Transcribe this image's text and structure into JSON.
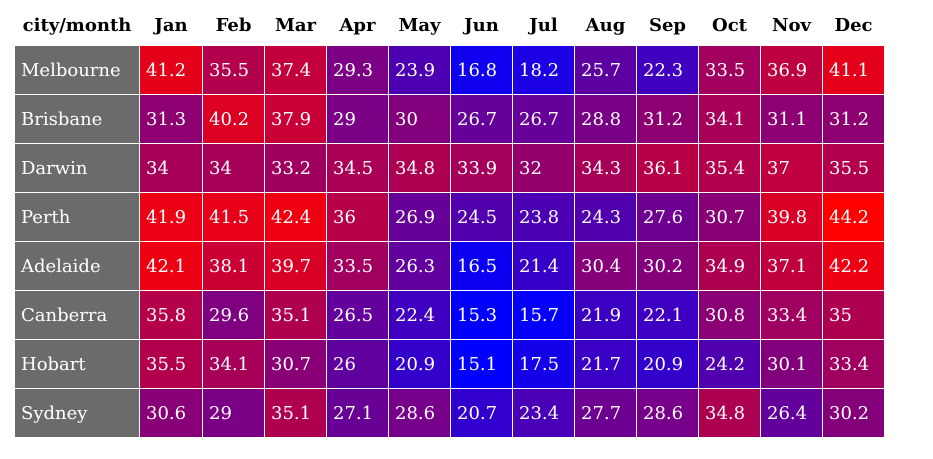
{
  "header_label": "city/month",
  "colors": {
    "low": "#0000ff",
    "high": "#ff0000",
    "row_label_bg": "#6b6b6b",
    "cell_text": "#ffffff"
  },
  "chart_data": {
    "type": "heatmap",
    "title": "",
    "xlabel": "",
    "ylabel": "",
    "x": [
      "Jan",
      "Feb",
      "Mar",
      "Apr",
      "May",
      "Jun",
      "Jul",
      "Aug",
      "Sep",
      "Oct",
      "Nov",
      "Dec"
    ],
    "y": [
      "Melbourne",
      "Brisbane",
      "Darwin",
      "Perth",
      "Adelaide",
      "Canberra",
      "Hobart",
      "Sydney"
    ],
    "values": [
      [
        "41.2",
        "35.5",
        "37.4",
        "29.3",
        "23.9",
        "16.8",
        "18.2",
        "25.7",
        "22.3",
        "33.5",
        "36.9",
        "41.1"
      ],
      [
        "31.3",
        "40.2",
        "37.9",
        "29",
        "30",
        "26.7",
        "26.7",
        "28.8",
        "31.2",
        "34.1",
        "31.1",
        "31.2"
      ],
      [
        "34",
        "34",
        "33.2",
        "34.5",
        "34.8",
        "33.9",
        "32",
        "34.3",
        "36.1",
        "35.4",
        "37",
        "35.5"
      ],
      [
        "41.9",
        "41.5",
        "42.4",
        "36",
        "26.9",
        "24.5",
        "23.8",
        "24.3",
        "27.6",
        "30.7",
        "39.8",
        "44.2"
      ],
      [
        "42.1",
        "38.1",
        "39.7",
        "33.5",
        "26.3",
        "16.5",
        "21.4",
        "30.4",
        "30.2",
        "34.9",
        "37.1",
        "42.2"
      ],
      [
        "35.8",
        "29.6",
        "35.1",
        "26.5",
        "22.4",
        "15.3",
        "15.7",
        "21.9",
        "22.1",
        "30.8",
        "33.4",
        "35"
      ],
      [
        "35.5",
        "34.1",
        "30.7",
        "26",
        "20.9",
        "15.1",
        "17.5",
        "21.7",
        "20.9",
        "24.2",
        "30.1",
        "33.4"
      ],
      [
        "30.6",
        "29",
        "35.1",
        "27.1",
        "28.6",
        "20.7",
        "23.4",
        "27.7",
        "28.6",
        "34.8",
        "26.4",
        "30.2"
      ]
    ],
    "value_range": [
      15.1,
      44.2
    ],
    "color_scale": [
      "#0000ff",
      "#ff0000"
    ],
    "legend": "none"
  }
}
